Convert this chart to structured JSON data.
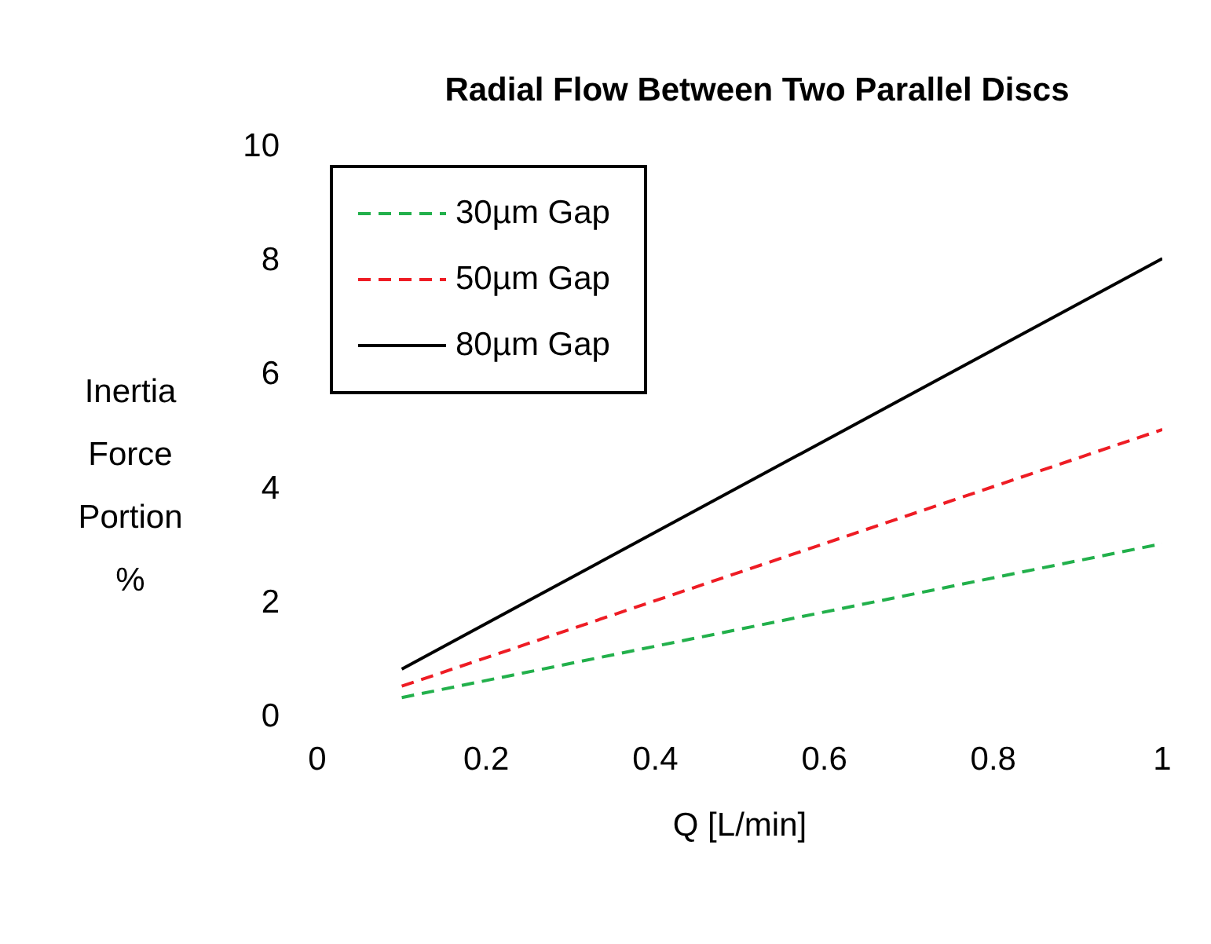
{
  "chart_data": {
    "type": "line",
    "title": "Radial Flow Between Two Parallel Discs",
    "xlabel": "Q [L/min]",
    "ylabel": "Inertia Force Portion %",
    "x": [
      0.1,
      1
    ],
    "series": [
      {
        "name": "30µm Gap",
        "color": "#22b04b",
        "values": [
          0.3,
          3
        ],
        "line_style": "dashed"
      },
      {
        "name": "50µm Gap",
        "color": "#ee1c24",
        "values": [
          0.5,
          5
        ],
        "line_style": "dashed"
      },
      {
        "name": "80µm Gap",
        "color": "#000000",
        "values": [
          0.8,
          8
        ],
        "line_style": "solid"
      }
    ],
    "xlim": [
      0,
      1
    ],
    "xticks": [
      0,
      0.2,
      0.4,
      0.6,
      0.8,
      1
    ],
    "ylim": [
      0,
      10
    ],
    "yticks": [
      0,
      2,
      4,
      6,
      8,
      10
    ],
    "grid": false,
    "legend": "top left",
    "marker": "none"
  }
}
